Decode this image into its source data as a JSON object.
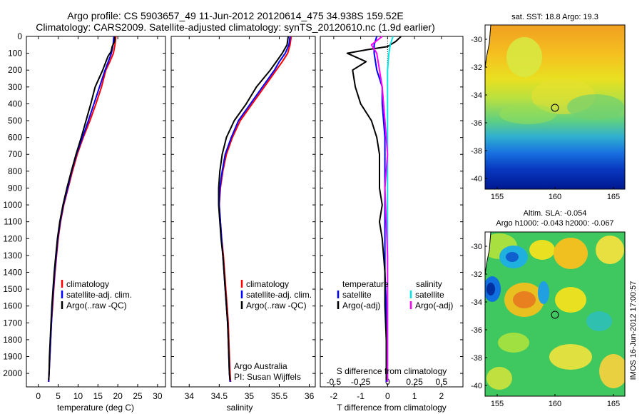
{
  "header": {
    "title_line1": "Argo profile: CS 5903657_49 11-Jun-2012 20120614_475 34.938S 159.52E",
    "title_line2": "Climatology: CARS2009. Satellite-adjusted climatology: synTS_20120610.nc (1.9d earlier)"
  },
  "colors": {
    "climatology": "#ff0000",
    "satellite": "#0000ff",
    "argo": "#000000",
    "sal_satellite": "#00e5e5",
    "sal_argo": "#ff00ff"
  },
  "chart_data": [
    {
      "type": "line",
      "name": "temperature-panel",
      "xlabel": "temperature (deg C)",
      "ylabel": "",
      "xlim": [
        -3,
        32
      ],
      "ylim": [
        2080,
        0
      ],
      "y_inverted": true,
      "xticks": [
        0,
        5,
        10,
        15,
        20,
        25,
        30
      ],
      "yticks": [
        0,
        100,
        200,
        300,
        400,
        500,
        600,
        700,
        800,
        900,
        1000,
        1100,
        1200,
        1300,
        1400,
        1500,
        1600,
        1700,
        1800,
        1900,
        2000
      ],
      "legend": {
        "placement": "lower-center",
        "entries": [
          "climatology",
          "satellite-adj. clim.",
          "Argo(..raw -QC)"
        ]
      },
      "series": [
        {
          "name": "climatology",
          "color": "#ff0000",
          "points": [
            [
              19.5,
              0
            ],
            [
              19.3,
              50
            ],
            [
              18.9,
              100
            ],
            [
              18,
              150
            ],
            [
              17,
              200
            ],
            [
              15.9,
              300
            ],
            [
              14.5,
              400
            ],
            [
              13,
              500
            ],
            [
              11.3,
              600
            ],
            [
              9.8,
              700
            ],
            [
              8.6,
              800
            ],
            [
              7.5,
              900
            ],
            [
              6.4,
              1000
            ],
            [
              5.6,
              1100
            ],
            [
              5,
              1200
            ],
            [
              4.6,
              1300
            ],
            [
              4.2,
              1400
            ],
            [
              3.9,
              1500
            ],
            [
              3.6,
              1600
            ],
            [
              3.3,
              1700
            ],
            [
              3.1,
              1800
            ],
            [
              2.9,
              1900
            ],
            [
              2.7,
              2000
            ],
            [
              2.6,
              2050
            ]
          ]
        },
        {
          "name": "satellite-adj. clim.",
          "color": "#0000ff",
          "points": [
            [
              19,
              0
            ],
            [
              18.8,
              50
            ],
            [
              18.4,
              100
            ],
            [
              17.6,
              150
            ],
            [
              16.8,
              200
            ],
            [
              15.4,
              300
            ],
            [
              14,
              400
            ],
            [
              12.6,
              500
            ],
            [
              11.1,
              600
            ],
            [
              9.6,
              700
            ],
            [
              8.4,
              800
            ],
            [
              7.4,
              900
            ],
            [
              6.3,
              1000
            ],
            [
              5.5,
              1100
            ],
            [
              4.9,
              1200
            ],
            [
              4.5,
              1300
            ],
            [
              4.1,
              1400
            ],
            [
              3.8,
              1500
            ],
            [
              3.5,
              1600
            ],
            [
              3.3,
              1700
            ],
            [
              3.1,
              1800
            ],
            [
              2.9,
              1900
            ],
            [
              2.7,
              2000
            ],
            [
              2.6,
              2050
            ]
          ]
        },
        {
          "name": "Argo(..raw -QC)",
          "color": "#000000",
          "points": [
            [
              19.2,
              0
            ],
            [
              19.2,
              30
            ],
            [
              18.6,
              60
            ],
            [
              18.3,
              90
            ],
            [
              17.5,
              120
            ],
            [
              16.2,
              200
            ],
            [
              14.3,
              300
            ],
            [
              13.2,
              400
            ],
            [
              12,
              500
            ],
            [
              10.8,
              600
            ],
            [
              9.5,
              700
            ],
            [
              8.3,
              800
            ],
            [
              7.2,
              900
            ],
            [
              6.2,
              1000
            ],
            [
              5.4,
              1100
            ],
            [
              4.8,
              1200
            ],
            [
              4.4,
              1300
            ],
            [
              4,
              1400
            ],
            [
              3.7,
              1500
            ],
            [
              3.4,
              1600
            ],
            [
              3.2,
              1700
            ],
            [
              3,
              1800
            ],
            [
              2.8,
              1900
            ],
            [
              2.7,
              2000
            ],
            [
              2.6,
              2040
            ]
          ]
        }
      ]
    },
    {
      "type": "line",
      "name": "salinity-panel",
      "xlabel": "salinity",
      "ylabel": "",
      "xlim": [
        33.7,
        36.1
      ],
      "ylim": [
        2080,
        0
      ],
      "y_inverted": true,
      "xticks": [
        34,
        34.5,
        35,
        35.5,
        36
      ],
      "legend": {
        "placement": "lower-center",
        "entries": [
          "climatology",
          "satellite-adj. clim.",
          "Argo(..raw -QC)"
        ]
      },
      "annotations": [
        "Argo Australia",
        "PI: Susan Wijffels"
      ],
      "series": [
        {
          "name": "climatology",
          "color": "#ff0000",
          "points": [
            [
              35.7,
              0
            ],
            [
              35.68,
              50
            ],
            [
              35.64,
              100
            ],
            [
              35.55,
              150
            ],
            [
              35.45,
              200
            ],
            [
              35.25,
              300
            ],
            [
              35.05,
              400
            ],
            [
              34.85,
              500
            ],
            [
              34.72,
              600
            ],
            [
              34.62,
              700
            ],
            [
              34.56,
              800
            ],
            [
              34.52,
              900
            ],
            [
              34.5,
              1000
            ],
            [
              34.52,
              1100
            ],
            [
              34.54,
              1200
            ],
            [
              34.57,
              1300
            ],
            [
              34.59,
              1400
            ],
            [
              34.61,
              1500
            ],
            [
              34.63,
              1600
            ],
            [
              34.65,
              1700
            ],
            [
              34.66,
              1800
            ],
            [
              34.67,
              1900
            ],
            [
              34.68,
              2000
            ],
            [
              34.69,
              2050
            ]
          ]
        },
        {
          "name": "satellite-adj. clim.",
          "color": "#0000ff",
          "points": [
            [
              35.68,
              0
            ],
            [
              35.66,
              50
            ],
            [
              35.6,
              100
            ],
            [
              35.5,
              150
            ],
            [
              35.42,
              200
            ],
            [
              35.22,
              300
            ],
            [
              35.02,
              400
            ],
            [
              34.82,
              500
            ],
            [
              34.7,
              600
            ],
            [
              34.6,
              700
            ],
            [
              34.55,
              800
            ],
            [
              34.51,
              900
            ],
            [
              34.5,
              1000
            ],
            [
              34.52,
              1100
            ],
            [
              34.54,
              1200
            ],
            [
              34.56,
              1300
            ],
            [
              34.58,
              1400
            ],
            [
              34.6,
              1500
            ],
            [
              34.62,
              1600
            ],
            [
              34.64,
              1700
            ],
            [
              34.65,
              1800
            ],
            [
              34.66,
              1900
            ],
            [
              34.67,
              2000
            ],
            [
              34.68,
              2050
            ]
          ]
        },
        {
          "name": "Argo(..raw -QC)",
          "color": "#000000",
          "points": [
            [
              35.65,
              0
            ],
            [
              35.63,
              50
            ],
            [
              35.55,
              100
            ],
            [
              35.45,
              150
            ],
            [
              35.35,
              200
            ],
            [
              35.12,
              300
            ],
            [
              34.95,
              400
            ],
            [
              34.75,
              500
            ],
            [
              34.62,
              600
            ],
            [
              34.55,
              700
            ],
            [
              34.51,
              800
            ],
            [
              34.49,
              900
            ],
            [
              34.49,
              1000
            ],
            [
              34.51,
              1100
            ],
            [
              34.53,
              1200
            ],
            [
              34.56,
              1300
            ],
            [
              34.58,
              1400
            ],
            [
              34.6,
              1500
            ],
            [
              34.62,
              1600
            ],
            [
              34.64,
              1700
            ],
            [
              34.65,
              1800
            ],
            [
              34.66,
              1900
            ],
            [
              34.67,
              2000
            ],
            [
              34.68,
              2040
            ]
          ]
        }
      ]
    },
    {
      "type": "line",
      "name": "difference-panel",
      "xlabel": "T difference from climatology",
      "x2label": "S difference from climatology",
      "ylabel": "",
      "xlim": [
        -2.5,
        2.8
      ],
      "ylim": [
        2080,
        0
      ],
      "y_inverted": true,
      "xticks": [
        -2,
        -1,
        0,
        1,
        2
      ],
      "x2ticks": [
        "-0.5",
        "-0.25",
        "0",
        "0.25",
        "0.5"
      ],
      "legend": {
        "placement": "lower-center",
        "titles": [
          "temperature",
          "salinity"
        ],
        "entries": [
          "satellite",
          "Argo(-adj)",
          "satellite",
          "Argo(-adj)"
        ]
      },
      "zero_line": "dotted",
      "series": [
        {
          "name": "temperature satellite",
          "color": "#0000ff",
          "points": [
            [
              -0.4,
              0
            ],
            [
              -0.5,
              50
            ],
            [
              -0.5,
              100
            ],
            [
              -0.4,
              200
            ],
            [
              -0.2,
              300
            ],
            [
              -0.2,
              400
            ],
            [
              -0.1,
              600
            ],
            [
              -0.1,
              800
            ],
            [
              -0.1,
              1000
            ],
            [
              -0.1,
              1200
            ],
            [
              -0.1,
              1400
            ],
            [
              -0.05,
              1600
            ],
            [
              -0.05,
              1800
            ],
            [
              -0.05,
              2000
            ],
            [
              -0.05,
              2050
            ]
          ]
        },
        {
          "name": "temperature Argo(-adj)",
          "color": "#000000",
          "points": [
            [
              0.5,
              0
            ],
            [
              0.3,
              30
            ],
            [
              0,
              60
            ],
            [
              -0.8,
              80
            ],
            [
              -1.5,
              100
            ],
            [
              -0.8,
              150
            ],
            [
              -1.3,
              200
            ],
            [
              -1.2,
              300
            ],
            [
              -1,
              400
            ],
            [
              -0.6,
              500
            ],
            [
              -0.4,
              600
            ],
            [
              -0.3,
              700
            ],
            [
              -0.3,
              800
            ],
            [
              -0.3,
              900
            ],
            [
              -0.2,
              1000
            ],
            [
              -0.3,
              1100
            ],
            [
              -0.2,
              1200
            ],
            [
              -0.1,
              1400
            ],
            [
              -0.1,
              1600
            ],
            [
              -0.05,
              1800
            ],
            [
              -0.05,
              2000
            ],
            [
              -0.05,
              2040
            ]
          ]
        },
        {
          "name": "salinity satellite",
          "color": "#00e5e5",
          "points": [
            [
              0.2,
              0
            ],
            [
              0.1,
              50
            ],
            [
              0.05,
              100
            ],
            [
              0,
              200
            ],
            [
              0,
              300
            ],
            [
              0,
              400
            ],
            [
              0,
              600
            ],
            [
              0,
              800
            ],
            [
              0,
              1000
            ],
            [
              0,
              1200
            ],
            [
              0,
              1400
            ],
            [
              0,
              1600
            ],
            [
              0,
              1800
            ],
            [
              0,
              2000
            ],
            [
              0,
              2050
            ]
          ]
        },
        {
          "name": "salinity Argo(-adj)",
          "color": "#ff00ff",
          "points": [
            [
              -0.2,
              0
            ],
            [
              -0.6,
              50
            ],
            [
              -0.4,
              100
            ],
            [
              -0.3,
              200
            ],
            [
              -0.2,
              300
            ],
            [
              -0.1,
              500
            ],
            [
              0,
              700
            ],
            [
              -0.1,
              900
            ],
            [
              -0.05,
              1100
            ],
            [
              0,
              1300
            ],
            [
              0,
              1500
            ],
            [
              0,
              1700
            ],
            [
              0,
              1900
            ],
            [
              0,
              2050
            ]
          ]
        }
      ]
    }
  ],
  "maps": {
    "sst": {
      "title": "sat. SST: 18.8 Argo: 19.3",
      "xticks": [
        "155",
        "160",
        "165"
      ],
      "yticks": [
        "-30",
        "-32",
        "-34",
        "-36",
        "-38",
        "-40"
      ]
    },
    "sla": {
      "title_line1": "Altim. SLA: -0.054",
      "title_line2": "Argo h1000: -0.043 h2000: -0.067",
      "xticks": [
        "155",
        "160",
        "165"
      ],
      "yticks": [
        "-30",
        "-32",
        "-34",
        "-36",
        "-38",
        "-40"
      ]
    }
  },
  "footer": {
    "imos_stamp": "IMOS 16-Jun-2012 17:00:57"
  }
}
